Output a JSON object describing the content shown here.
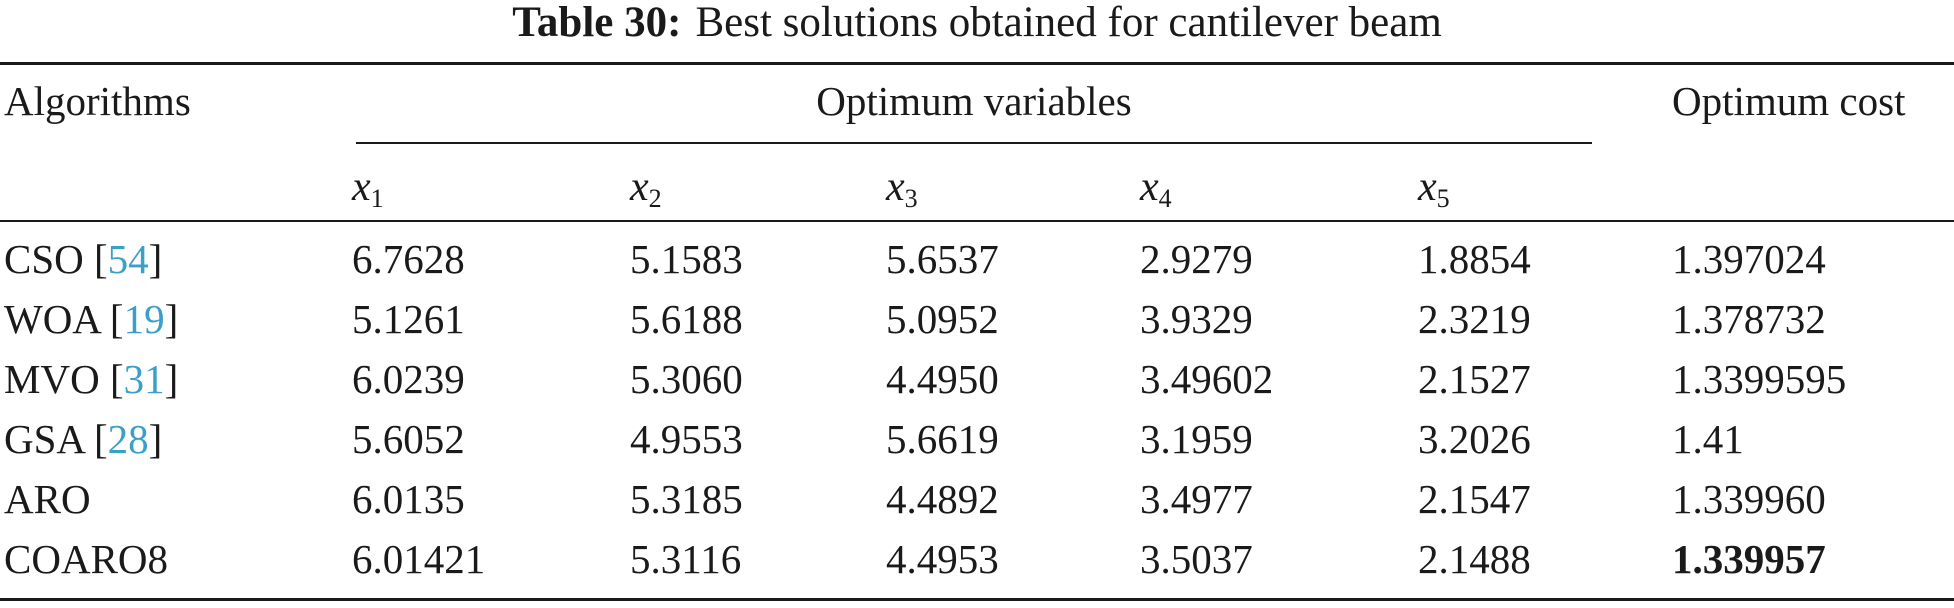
{
  "caption": {
    "label": "Table 30:",
    "text": "Best solutions obtained for cantilever beam"
  },
  "header": {
    "algorithms": "Algorithms",
    "optimum_variables": "Optimum variables",
    "optimum_cost": "Optimum cost",
    "variables": [
      {
        "symbol": "x",
        "sub": "1"
      },
      {
        "symbol": "x",
        "sub": "2"
      },
      {
        "symbol": "x",
        "sub": "3"
      },
      {
        "symbol": "x",
        "sub": "4"
      },
      {
        "symbol": "x",
        "sub": "5"
      }
    ]
  },
  "rows": [
    {
      "algorithm": "CSO",
      "ref": "54",
      "values": [
        "6.7628",
        "5.1583",
        "5.6537",
        "2.9279",
        "1.8854"
      ],
      "cost": "1.397024",
      "best": false
    },
    {
      "algorithm": "WOA",
      "ref": "19",
      "values": [
        "5.1261",
        "5.6188",
        "5.0952",
        "3.9329",
        "2.3219"
      ],
      "cost": "1.378732",
      "best": false
    },
    {
      "algorithm": "MVO",
      "ref": "31",
      "values": [
        "6.0239",
        "5.3060",
        "4.4950",
        "3.49602",
        "2.1527"
      ],
      "cost": "1.3399595",
      "best": false
    },
    {
      "algorithm": "GSA",
      "ref": "28",
      "values": [
        "5.6052",
        "4.9553",
        "5.6619",
        "3.1959",
        "3.2026"
      ],
      "cost": "1.41",
      "best": false
    },
    {
      "algorithm": "ARO",
      "ref": "",
      "values": [
        "6.0135",
        "5.3185",
        "4.4892",
        "3.4977",
        "2.1547"
      ],
      "cost": "1.339960",
      "best": false
    },
    {
      "algorithm": "COARO8",
      "ref": "",
      "values": [
        "6.01421",
        "5.3116",
        "4.4953",
        "3.5037",
        "2.1488"
      ],
      "cost": "1.339957",
      "best": true
    }
  ],
  "colors": {
    "text": "#1a1a1a",
    "citation_link": "#3aa0c8"
  }
}
